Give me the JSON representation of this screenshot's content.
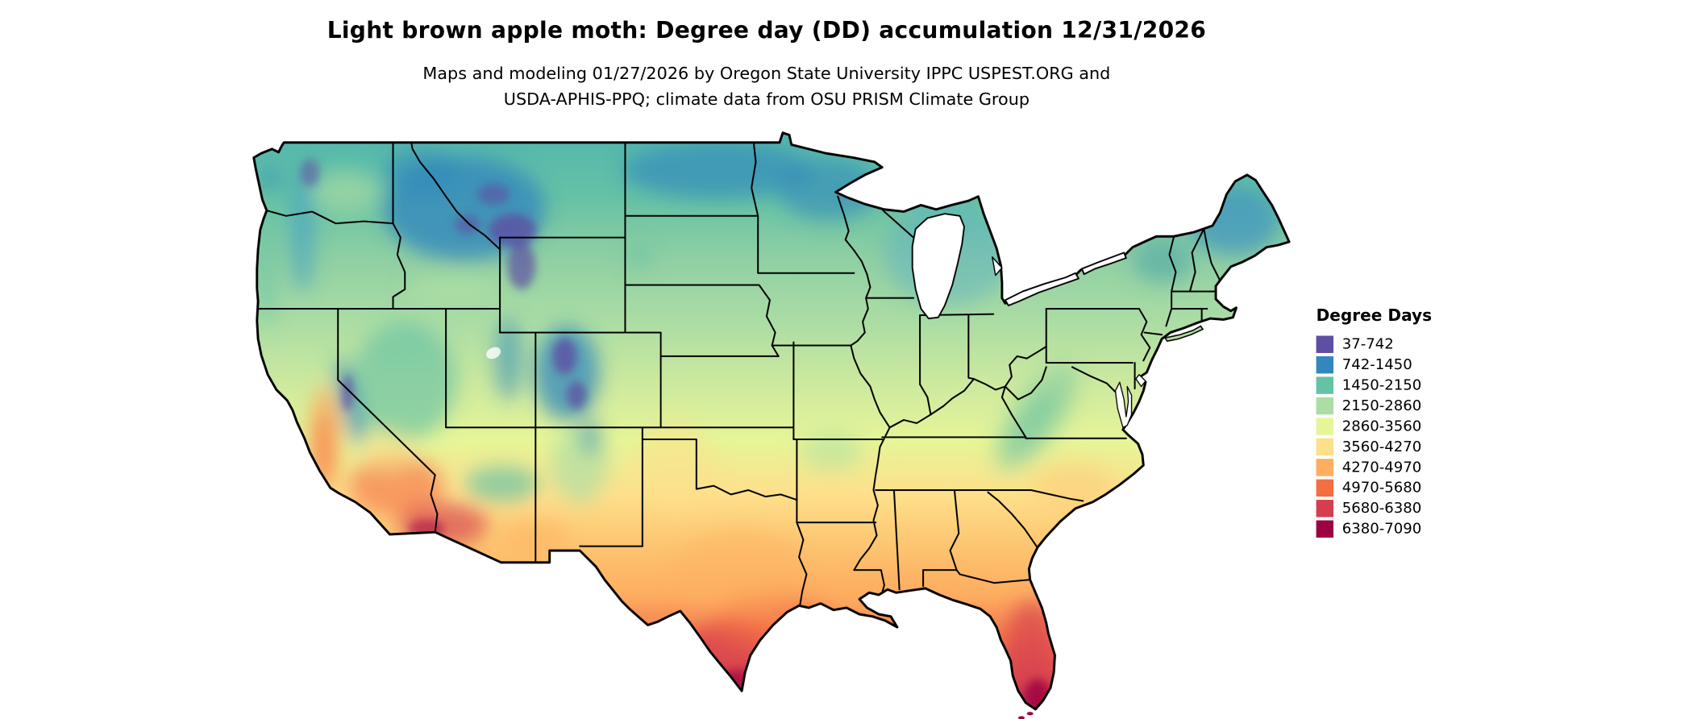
{
  "header": {
    "title": "Light brown apple moth: Degree day (DD) accumulation 12/31/2026",
    "subtitle_line1": "Maps and modeling 01/27/2026 by Oregon State University IPPC USPEST.ORG and",
    "subtitle_line2": "USDA-APHIS-PPQ; climate data from OSU PRISM Climate Group"
  },
  "legend": {
    "title": "Degree Days",
    "items": [
      {
        "label": "37-742",
        "color": "#5E4FA2"
      },
      {
        "label": "742-1450",
        "color": "#3288BD"
      },
      {
        "label": "1450-2150",
        "color": "#66C2A5"
      },
      {
        "label": "2150-2860",
        "color": "#ABDDA4"
      },
      {
        "label": "2860-3560",
        "color": "#E6F598"
      },
      {
        "label": "3560-4270",
        "color": "#FEE08B"
      },
      {
        "label": "4270-4970",
        "color": "#FDAE61"
      },
      {
        "label": "4970-5680",
        "color": "#F46D43"
      },
      {
        "label": "5680-6380",
        "color": "#D53E4F"
      },
      {
        "label": "6380-7090",
        "color": "#9E0142"
      }
    ]
  },
  "chart_data": {
    "type": "heatmap",
    "subtype": "choropleth-raster-map",
    "region": "Contiguous United States",
    "variable": "Degree day (DD) accumulation",
    "date": "12/31/2026",
    "legend_title": "Degree Days",
    "value_range": [
      37,
      7090
    ],
    "classes": [
      {
        "range": "37-742",
        "color": "#5E4FA2"
      },
      {
        "range": "742-1450",
        "color": "#3288BD"
      },
      {
        "range": "1450-2150",
        "color": "#66C2A5"
      },
      {
        "range": "2150-2860",
        "color": "#ABDDA4"
      },
      {
        "range": "2860-3560",
        "color": "#E6F598"
      },
      {
        "range": "3560-4270",
        "color": "#FEE08B"
      },
      {
        "range": "4270-4970",
        "color": "#FDAE61"
      },
      {
        "range": "4970-5680",
        "color": "#F46D43"
      },
      {
        "range": "5680-6380",
        "color": "#D53E4F"
      },
      {
        "range": "6380-7090",
        "color": "#9E0142"
      }
    ],
    "pattern_notes": "Low DD (purple/blue) in northern Rockies, Sierra Nevada, Colorado Rockies, northern Minnesota and Maine; mid DD (teal/green) across northern tier and Appalachians; high DD (orange/red) across southern tier; highest DD (dark red) in SW Arizona deserts, south Texas and south Florida"
  }
}
